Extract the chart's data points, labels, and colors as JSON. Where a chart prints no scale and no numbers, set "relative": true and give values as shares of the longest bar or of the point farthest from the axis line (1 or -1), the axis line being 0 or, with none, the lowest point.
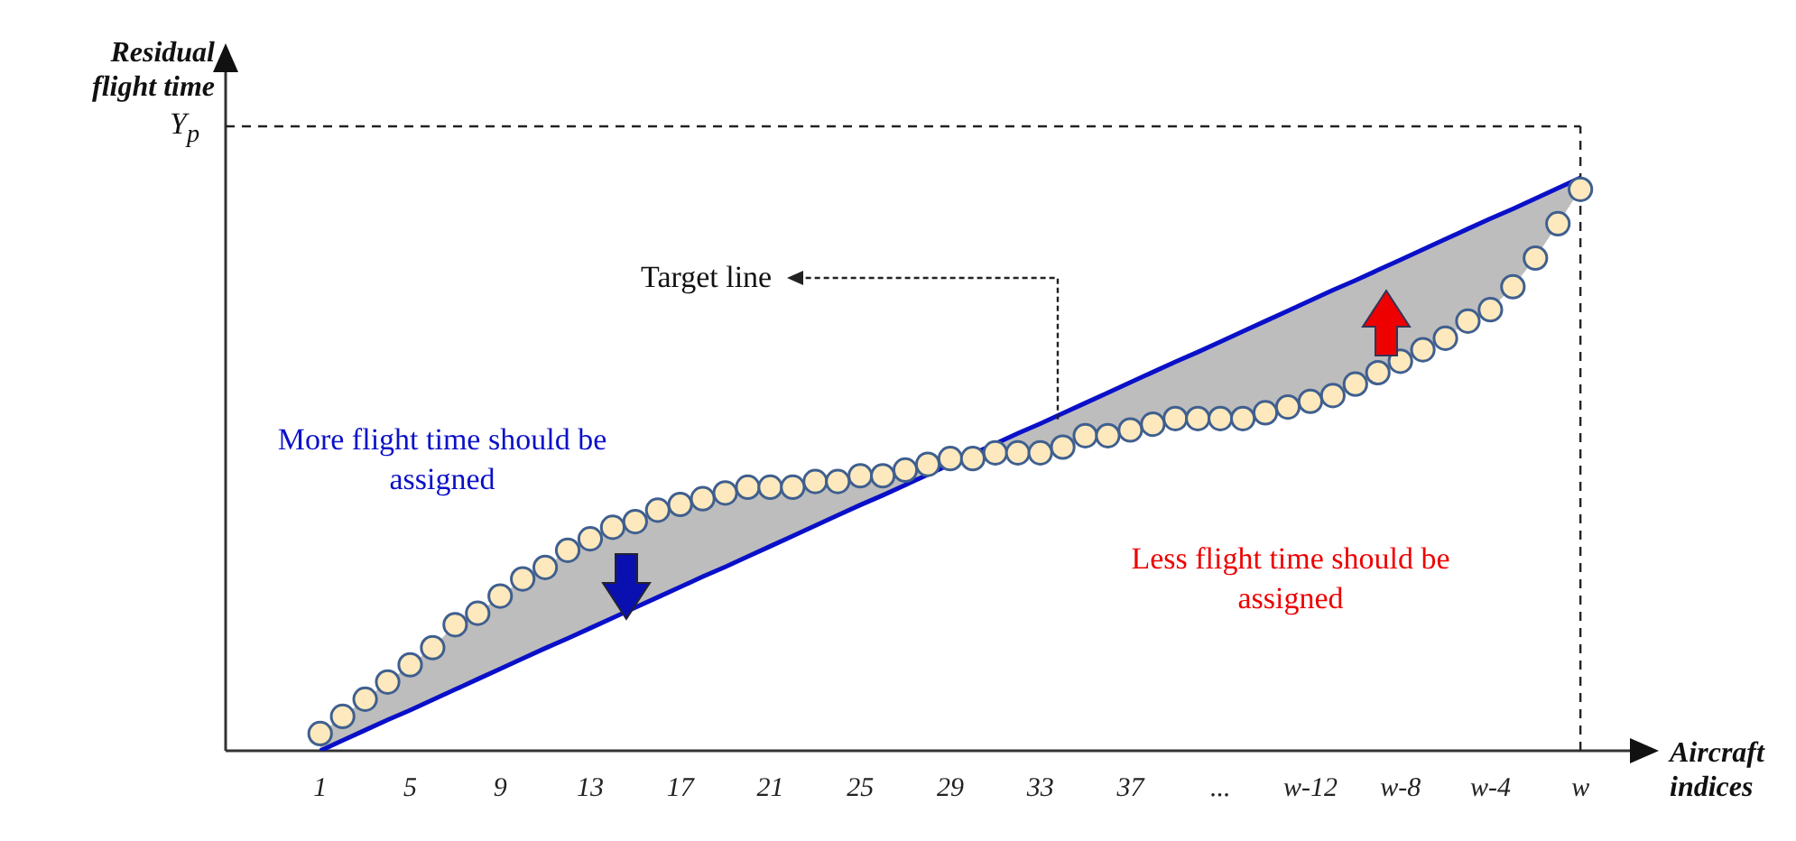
{
  "chart_data": {
    "type": "scatter",
    "relative": true,
    "xlabel": "Aircraft indices",
    "ylabel": "Residual flight time",
    "categories": [
      "1",
      null,
      null,
      null,
      "5",
      null,
      null,
      null,
      "9",
      null,
      null,
      null,
      "13",
      null,
      null,
      null,
      "17",
      null,
      null,
      null,
      "21",
      null,
      null,
      null,
      "25",
      null,
      null,
      null,
      "29",
      null,
      null,
      null,
      "33",
      null,
      null,
      null,
      "37",
      null,
      null,
      null,
      "...",
      null,
      null,
      null,
      "w-12",
      null,
      null,
      null,
      "w-8",
      null,
      null,
      null,
      "w-4",
      null,
      null,
      null,
      "w"
    ],
    "series": [
      {
        "type": "line",
        "marker": "none",
        "color": "#0a10c8",
        "values": [
          0,
          0.018,
          0.036,
          0.054,
          0.071,
          0.089,
          0.107,
          0.125,
          0.143,
          0.161,
          0.179,
          0.196,
          0.214,
          0.232,
          0.25,
          0.268,
          0.286,
          0.304,
          0.321,
          0.339,
          0.357,
          0.375,
          0.393,
          0.411,
          0.429,
          0.446,
          0.464,
          0.482,
          0.5,
          0.518,
          0.536,
          0.554,
          0.571,
          0.589,
          0.607,
          0.625,
          0.643,
          0.661,
          0.679,
          0.696,
          0.714,
          0.732,
          0.75,
          0.768,
          0.786,
          0.804,
          0.821,
          0.839,
          0.857,
          0.875,
          0.893,
          0.911,
          0.929,
          0.946,
          0.964,
          0.982,
          1
        ]
      },
      {
        "color": "#fde9bd",
        "values": [
          0.03,
          0.06,
          0.09,
          0.12,
          0.15,
          0.18,
          0.22,
          0.24,
          0.27,
          0.3,
          0.32,
          0.35,
          0.37,
          0.39,
          0.4,
          0.42,
          0.43,
          0.44,
          0.45,
          0.46,
          0.46,
          0.46,
          0.47,
          0.47,
          0.48,
          0.48,
          0.49,
          0.5,
          0.51,
          0.51,
          0.52,
          0.52,
          0.52,
          0.53,
          0.55,
          0.55,
          0.56,
          0.57,
          0.58,
          0.58,
          0.58,
          0.58,
          0.59,
          0.6,
          0.61,
          0.62,
          0.64,
          0.66,
          0.68,
          0.7,
          0.72,
          0.75,
          0.77,
          0.81,
          0.86,
          0.92,
          0.98
        ]
      }
    ],
    "marker": "circle",
    "ref_lines": [
      {
        "axis": "y",
        "value": 1.09,
        "label": "Y$_{p}$",
        "line_style": "dashed"
      },
      {
        "axis": "x",
        "value": "w",
        "line_style": "dashed"
      }
    ],
    "annotations": [
      "Target line",
      "More flight time should be assigned",
      "Less flight time should be assigned"
    ]
  }
}
